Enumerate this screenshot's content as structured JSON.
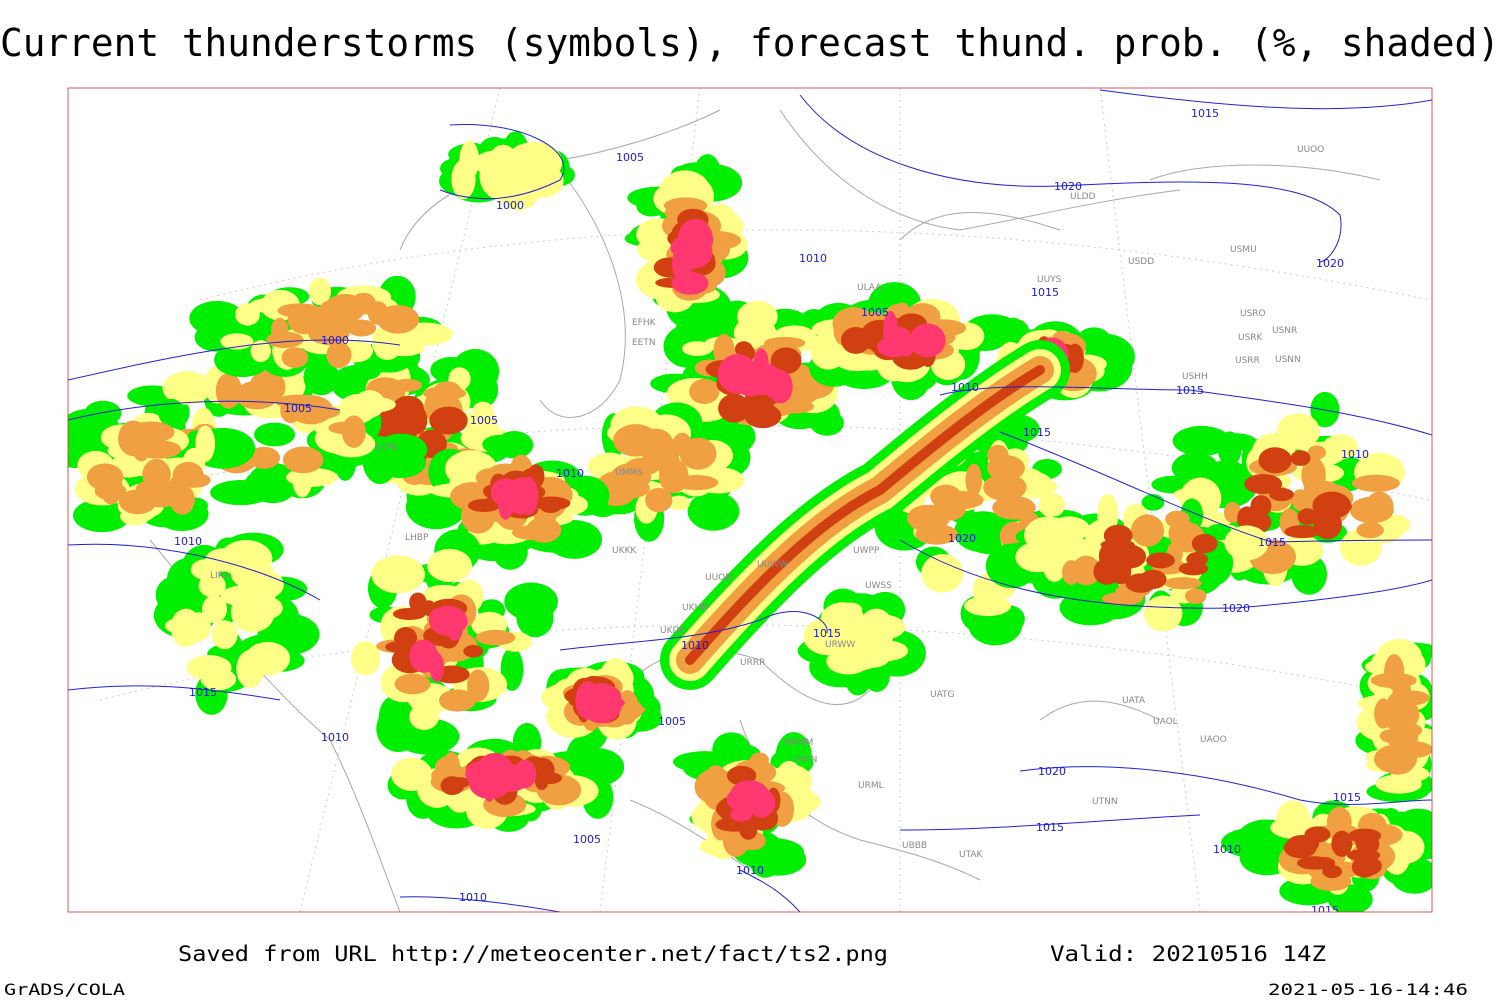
{
  "title": "Current thunderstorms (symbols), forecast thund. prob. (%, shaded)",
  "footer": {
    "source": "Saved from URL http://meteocenter.net/fact/ts2.png",
    "valid": "Valid: 20210516 14Z",
    "software": "GrADS/COLA",
    "timestamp": "2021-05-16-14:46"
  },
  "isobars": [
    "1015",
    "1005",
    "1000",
    "1020",
    "1020",
    "1010",
    "1015",
    "1005",
    "1000",
    "1005",
    "1005",
    "1010",
    "1015",
    "1015",
    "1010",
    "1010",
    "1010",
    "1020",
    "1015",
    "1020",
    "1010",
    "1015",
    "1015",
    "1005",
    "1010",
    "1020",
    "1015",
    "1005",
    "1010",
    "1010",
    "1015",
    "1010",
    "1015"
  ],
  "stations": [
    "UUOO",
    "ULDD",
    "USDD",
    "USMU",
    "UUYS",
    "ULAA",
    "USRO",
    "USRK",
    "USNR",
    "USRR",
    "USNN",
    "USHH",
    "UUWW",
    "UUOB",
    "UKHH",
    "UKDE",
    "URRR",
    "UWPP",
    "UWSS",
    "URWW",
    "UATG",
    "UATA",
    "UAOL",
    "UAOO",
    "UTNN",
    "UTAK",
    "UBBB",
    "URML",
    "URMM",
    "URMN",
    "LKPR",
    "LHBP",
    "LIRA",
    "EFHK",
    "EETN",
    "UMMS",
    "UKKK"
  ]
}
